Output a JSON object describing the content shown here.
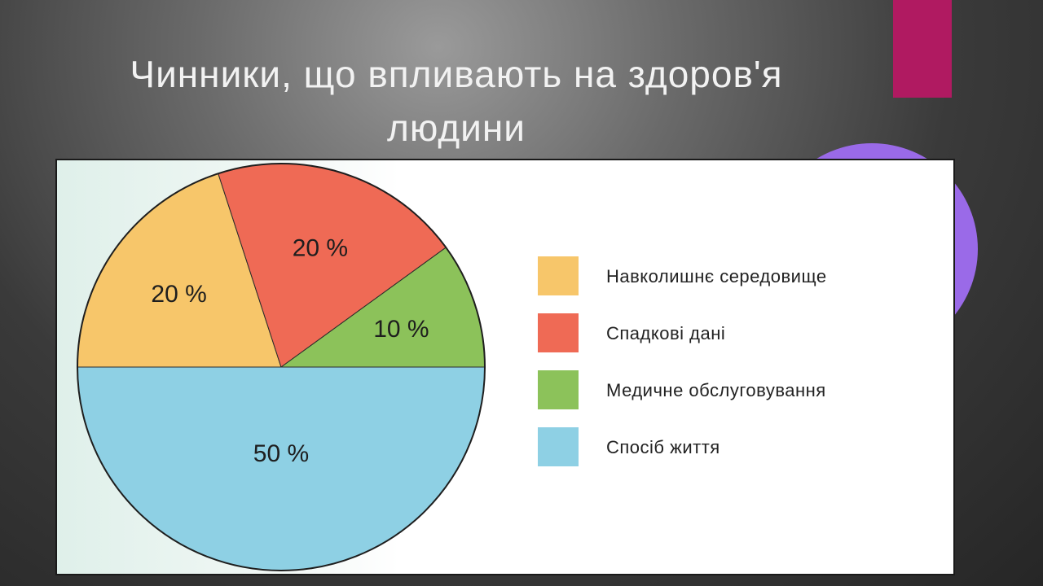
{
  "slide": {
    "title_line1": "Чинники, що впливають на здоров'я",
    "title_line2": "людини",
    "accent_colors": {
      "bar": "#b01a61",
      "circle": "#9a6ae8"
    }
  },
  "chart_data": {
    "type": "pie",
    "title": "",
    "legend_position": "right",
    "slices": [
      {
        "label": "Навколишнє середовище",
        "value": 20,
        "value_label": "20 %",
        "color": "#f7c66a"
      },
      {
        "label": "Спадкові дані",
        "value": 20,
        "value_label": "20 %",
        "color": "#ef6a55"
      },
      {
        "label": "Медичне обслуговування",
        "value": 10,
        "value_label": "10 %",
        "color": "#8cc25a"
      },
      {
        "label": "Спосіб життя",
        "value": 50,
        "value_label": "50 %",
        "color": "#8ed0e4"
      }
    ]
  }
}
